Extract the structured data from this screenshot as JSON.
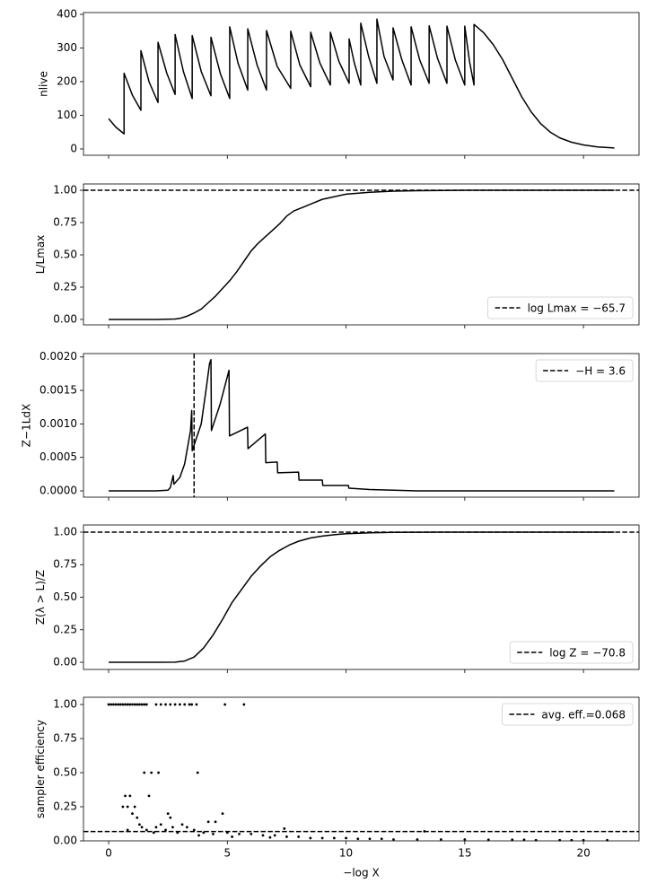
{
  "chart_data": [
    {
      "type": "line",
      "color": "#000000",
      "ylabel": "nlive",
      "xlim": [
        -1.06,
        22.34
      ],
      "xticks": [
        0,
        5,
        10,
        15,
        20
      ],
      "ylim": [
        -18.7,
        405.3
      ],
      "yticks": [
        0,
        100,
        200,
        300,
        400
      ],
      "x": [
        0,
        0.3,
        0.65,
        0.65,
        1.0,
        1.36,
        1.36,
        1.7,
        2.08,
        2.08,
        2.45,
        2.8,
        2.8,
        3.15,
        3.52,
        3.52,
        3.9,
        4.31,
        4.31,
        4.7,
        5.1,
        5.1,
        5.45,
        5.86,
        5.86,
        6.25,
        6.65,
        6.65,
        7.1,
        7.67,
        7.67,
        8.05,
        8.51,
        8.51,
        8.9,
        9.34,
        9.34,
        9.7,
        10.13,
        10.13,
        10.35,
        10.62,
        10.62,
        10.95,
        11.3,
        11.3,
        11.6,
        11.98,
        11.98,
        12.35,
        12.74,
        12.74,
        13.1,
        13.5,
        13.5,
        13.85,
        14.25,
        14.25,
        14.6,
        15.0,
        15.0,
        15.2,
        15.39,
        15.39,
        15.8,
        16.2,
        16.6,
        17.0,
        17.4,
        17.8,
        18.2,
        18.6,
        19.0,
        19.5,
        20.0,
        20.6,
        21.3
      ],
      "values": [
        90,
        65,
        45,
        225,
        160,
        115,
        292,
        200,
        138,
        317,
        225,
        162,
        340,
        230,
        150,
        337,
        230,
        158,
        332,
        225,
        150,
        363,
        255,
        175,
        357,
        250,
        175,
        352,
        245,
        180,
        350,
        250,
        185,
        347,
        255,
        190,
        347,
        260,
        195,
        327,
        255,
        190,
        374,
        275,
        195,
        386,
        275,
        205,
        360,
        265,
        190,
        363,
        265,
        195,
        366,
        270,
        195,
        365,
        265,
        190,
        365,
        260,
        190,
        370,
        345,
        310,
        265,
        210,
        155,
        110,
        75,
        50,
        33,
        20,
        12,
        6,
        3
      ]
    },
    {
      "type": "line",
      "color": "#000000",
      "ylabel": "L/Lmax",
      "xlim": [
        -1.06,
        22.34
      ],
      "xticks": [
        0,
        5,
        10,
        15,
        20
      ],
      "ylim": [
        -0.042,
        1.049
      ],
      "yticks": [
        {
          "value": 0,
          "label": "0.00"
        },
        {
          "value": 0.25,
          "label": "0.25"
        },
        {
          "value": 0.5,
          "label": "0.50"
        },
        {
          "value": 0.75,
          "label": "0.75"
        },
        {
          "value": 1,
          "label": "1.00"
        }
      ],
      "x": [
        0,
        1,
        2,
        2.8,
        3.0,
        3.3,
        3.6,
        3.9,
        4.2,
        4.5,
        4.8,
        5.1,
        5.4,
        5.7,
        6.0,
        6.3,
        6.6,
        6.9,
        7.2,
        7.5,
        7.8,
        8.2,
        8.6,
        9.0,
        9.5,
        10,
        11,
        12,
        13,
        15,
        21.3
      ],
      "values": [
        0,
        0,
        0,
        0.003,
        0.008,
        0.025,
        0.05,
        0.08,
        0.13,
        0.18,
        0.24,
        0.3,
        0.37,
        0.45,
        0.53,
        0.59,
        0.64,
        0.69,
        0.74,
        0.8,
        0.84,
        0.87,
        0.9,
        0.93,
        0.95,
        0.97,
        0.985,
        0.993,
        0.997,
        1.0,
        1.0
      ],
      "hline": {
        "value": 1,
        "label": "log Lmax = −65.7"
      },
      "legend_loc": "lower right"
    },
    {
      "type": "line",
      "color": "#000000",
      "ylabel": "Z−1LdX",
      "xlim": [
        -1.06,
        22.34
      ],
      "xticks": [
        0,
        5,
        10,
        15,
        20
      ],
      "ylim": [
        -9.4e-05,
        0.00205
      ],
      "yticks": [
        {
          "value": 0,
          "label": "0.0000"
        },
        {
          "value": 0.0005,
          "label": "0.0005"
        },
        {
          "value": 0.001,
          "label": "0.0010"
        },
        {
          "value": 0.0015,
          "label": "0.0015"
        },
        {
          "value": 0.002,
          "label": "0.0020"
        }
      ],
      "x": [
        0,
        1,
        2,
        2.5,
        2.6,
        2.72,
        2.75,
        3.0,
        3.2,
        3.45,
        3.5,
        3.52,
        3.9,
        4.1,
        4.25,
        4.31,
        4.33,
        4.7,
        5.07,
        5.09,
        5.85,
        5.87,
        6.6,
        6.62,
        7.1,
        7.12,
        8.0,
        8.02,
        9.0,
        9.02,
        10.1,
        10.12,
        11,
        12,
        13,
        21.3
      ],
      "values": [
        0,
        0,
        0,
        1e-05,
        5e-05,
        0.00023,
        0.0001,
        0.0002,
        0.0004,
        0.0009,
        0.0012,
        0.0006,
        0.001,
        0.0015,
        0.0019,
        0.00196,
        0.0009,
        0.0013,
        0.0018,
        0.00082,
        0.00095,
        0.00063,
        0.00085,
        0.00042,
        0.00043,
        0.00027,
        0.00028,
        0.00016,
        0.00016,
        8e-05,
        8e-05,
        4e-05,
        2e-05,
        1e-05,
        0,
        0
      ],
      "vline": {
        "value": 3.6,
        "label": "−H = 3.6"
      },
      "legend_loc": "upper right"
    },
    {
      "type": "line",
      "color": "#000000",
      "ylabel": "Z(λ > L)/Z",
      "xlim": [
        -1.06,
        22.34
      ],
      "xticks": [
        0,
        5,
        10,
        15,
        20
      ],
      "ylim": [
        -0.055,
        1.055
      ],
      "yticks": [
        {
          "value": 0,
          "label": "0.00"
        },
        {
          "value": 0.25,
          "label": "0.25"
        },
        {
          "value": 0.5,
          "label": "0.50"
        },
        {
          "value": 0.75,
          "label": "0.75"
        },
        {
          "value": 1,
          "label": "1.00"
        }
      ],
      "x": [
        0,
        1,
        2,
        2.8,
        3.2,
        3.6,
        4.0,
        4.4,
        4.8,
        5.2,
        5.6,
        6.0,
        6.4,
        6.8,
        7.2,
        7.6,
        8.0,
        8.5,
        9,
        9.5,
        10,
        11,
        12,
        14,
        21.3
      ],
      "values": [
        0,
        0,
        0,
        0.001,
        0.01,
        0.04,
        0.11,
        0.21,
        0.33,
        0.46,
        0.56,
        0.66,
        0.74,
        0.81,
        0.86,
        0.9,
        0.93,
        0.955,
        0.97,
        0.98,
        0.988,
        0.995,
        0.998,
        1.0,
        1.0
      ],
      "hline": {
        "value": 1,
        "label": "log Z = −70.8"
      },
      "legend_loc": "lower right"
    },
    {
      "type": "scatter",
      "color": "#000000",
      "ylabel": "sampler efficiency",
      "xlabel": "−log X",
      "xlim": [
        -1.06,
        22.34
      ],
      "xticks": [
        0,
        5,
        10,
        15,
        20
      ],
      "ylim": [
        0,
        1.053
      ],
      "yticks": [
        {
          "value": 0,
          "label": "0.00"
        },
        {
          "value": 0.25,
          "label": "0.25"
        },
        {
          "value": 0.5,
          "label": "0.50"
        },
        {
          "value": 0.75,
          "label": "0.75"
        },
        {
          "value": 1,
          "label": "1.00"
        }
      ],
      "x": [
        0,
        0.1,
        0.2,
        0.3,
        0.4,
        0.5,
        0.6,
        0.7,
        0.8,
        0.9,
        1.0,
        1.1,
        1.2,
        1.3,
        1.4,
        1.5,
        1.6,
        2.0,
        2.2,
        2.4,
        2.6,
        2.8,
        3.0,
        3.2,
        3.4,
        3.5,
        3.7,
        4.9,
        5.7,
        1.5,
        1.8,
        2.1,
        3.75,
        0.7,
        0.9,
        1.7,
        0.6,
        0.8,
        1.1,
        1.0,
        2.5,
        4.8,
        1.2,
        2.6,
        4.2,
        4.5,
        1.3,
        2.2,
        3.1,
        1.4,
        2.0,
        2.7,
        3.3,
        0.8,
        1.6,
        2.4,
        3.6,
        1.9,
        2.9,
        4.0,
        5.0,
        4.4,
        5.5,
        6.0,
        3.8,
        6.5,
        7.0,
        5.2,
        7.5,
        8.0,
        6.8,
        7.4,
        8.5,
        9.0,
        9.5,
        10.0,
        10.5,
        11,
        11.5,
        12,
        13,
        13.3,
        14,
        15,
        16,
        17,
        17.5,
        18,
        19,
        19.5,
        20,
        21
      ],
      "values": [
        1,
        1,
        1,
        1,
        1,
        1,
        1,
        1,
        1,
        1,
        1,
        1,
        1,
        1,
        1,
        1,
        1,
        1,
        1,
        1,
        1,
        1,
        1,
        1,
        1,
        1,
        1,
        1,
        1,
        0.5,
        0.5,
        0.5,
        0.5,
        0.33,
        0.33,
        0.33,
        0.25,
        0.25,
        0.25,
        0.2,
        0.2,
        0.2,
        0.17,
        0.17,
        0.14,
        0.14,
        0.12,
        0.12,
        0.12,
        0.1,
        0.1,
        0.1,
        0.1,
        0.08,
        0.08,
        0.08,
        0.08,
        0.06,
        0.06,
        0.06,
        0.06,
        0.05,
        0.05,
        0.05,
        0.04,
        0.04,
        0.04,
        0.03,
        0.03,
        0.03,
        0.025,
        0.09,
        0.02,
        0.02,
        0.02,
        0.02,
        0.015,
        0.015,
        0.015,
        0.01,
        0.01,
        0.07,
        0.01,
        0.01,
        0.008,
        0.008,
        0.008,
        0.005,
        0.005,
        0.005,
        0.005,
        0.005
      ],
      "hline": {
        "value": 0.068,
        "label": "avg. eff.=0.068"
      },
      "legend_loc": "upper right"
    }
  ]
}
